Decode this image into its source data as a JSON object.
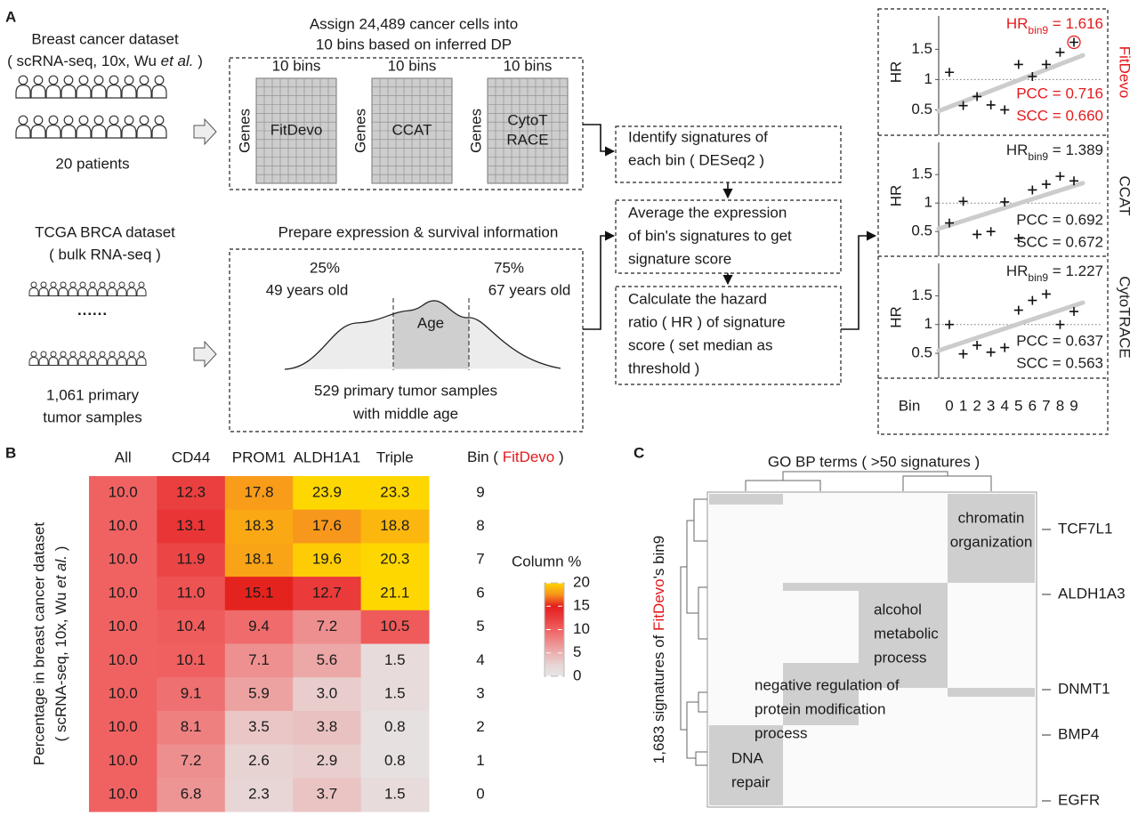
{
  "panel_a": {
    "label": "A",
    "sc": {
      "title": "Breast cancer dataset",
      "subtitle": [
        {
          "text": "( scRNA-seq, 10x, Wu "
        },
        {
          "text": "et al.",
          "style": "italic"
        },
        {
          "text": " )"
        }
      ],
      "patients": "20 patients"
    },
    "assign_title": [
      "Assign 24,489 cancer cells into",
      "10 bins based on inferred DP"
    ],
    "matrices": [
      {
        "top": "10 bins",
        "side": "Genes",
        "name": [
          "FitDevo"
        ]
      },
      {
        "top": "10 bins",
        "side": "Genes",
        "name": [
          "CCAT"
        ]
      },
      {
        "top": "10 bins",
        "side": "Genes",
        "name": [
          "CytoT",
          "RACE"
        ]
      }
    ],
    "tcga": {
      "title": "TCGA BRCA dataset",
      "subtitle": "( bulk RNA-seq )",
      "ellipsis": "······",
      "samples": [
        "1,061 primary",
        "tumor samples"
      ]
    },
    "prepare_title": "Prepare expression & survival information",
    "age": {
      "q25": "25%",
      "q25_age": "49 years old",
      "q75": "75%",
      "q75_age": "67 years old",
      "label": "Age",
      "caption": [
        "529 primary tumor samples",
        "with middle age"
      ]
    },
    "steps": [
      [
        "Identify signatures of",
        "each bin ( DESeq2 )"
      ],
      [
        "Average the expression",
        "of bin's signatures to get",
        "signature score"
      ],
      [
        "Calculate the hazard",
        "ratio ( HR ) of signature",
        "score ( set median as",
        "threshold )"
      ]
    ],
    "hr_axis": {
      "label": "HR",
      "ylim": [
        0.3,
        1.8
      ],
      "yticks": [
        0.5,
        1,
        1.5
      ],
      "reference": 1
    },
    "bin_axis": {
      "label": "Bin",
      "xlim": [
        0,
        9
      ],
      "ticks": [
        0,
        1,
        2,
        3,
        4,
        5,
        6,
        7,
        8,
        9
      ]
    },
    "hr_plots": [
      {
        "method": "FitDevo",
        "color": "#e41a1c",
        "hr_label": [
          {
            "text": "HR"
          },
          {
            "text": "bin9",
            "sub": true
          },
          {
            "text": " = 1.616"
          }
        ],
        "pcc": "PCC = 0.716",
        "scc": "SCC = 0.660",
        "hr": [
          1.12,
          0.57,
          0.72,
          0.58,
          0.5,
          1.25,
          1.05,
          1.25,
          1.45,
          1.616
        ],
        "trend": [
          0.48,
          1.4
        ],
        "highlight_bin": 9
      },
      {
        "method": "CCAT",
        "color": "#222222",
        "hr_label": [
          {
            "text": "HR"
          },
          {
            "text": "bin9",
            "sub": true
          },
          {
            "text": " = 1.389"
          }
        ],
        "pcc": "PCC = 0.692",
        "scc": "SCC = 0.672",
        "hr": [
          0.65,
          1.03,
          0.45,
          0.5,
          1.02,
          0.38,
          1.23,
          1.33,
          1.47,
          1.389
        ],
        "trend": [
          0.55,
          1.35
        ]
      },
      {
        "method": "CytoTRACE",
        "color": "#222222",
        "hr_label": [
          {
            "text": "HR"
          },
          {
            "text": "bin9",
            "sub": true
          },
          {
            "text": " = 1.227"
          }
        ],
        "pcc": "PCC = 0.637",
        "scc": "SCC = 0.563",
        "hr": [
          1.0,
          0.49,
          0.64,
          0.52,
          0.6,
          1.25,
          1.42,
          1.53,
          1.0,
          1.227
        ],
        "trend": [
          0.55,
          1.38
        ]
      }
    ]
  },
  "panel_b": {
    "label": "B",
    "columns": [
      "All",
      "CD44",
      "PROM1",
      "ALDH1A1",
      "Triple"
    ],
    "bin_header": [
      {
        "text": "Bin ( "
      },
      {
        "text": "FitDevo",
        "color": "#e41a1c"
      },
      {
        "text": " )"
      }
    ],
    "bins": [
      "9",
      "8",
      "7",
      "6",
      "5",
      "4",
      "3",
      "2",
      "1",
      "0"
    ],
    "ylabel": {
      "line1": "Percentage in breast cancer dataset",
      "line2": [
        {
          "text": "( scRNA-seq, 10x, Wu "
        },
        {
          "text": "et al.",
          "style": "italic"
        },
        {
          "text": " )"
        }
      ]
    },
    "values": [
      [
        10.0,
        12.3,
        17.8,
        23.9,
        23.3
      ],
      [
        10.0,
        13.1,
        18.3,
        17.6,
        18.8
      ],
      [
        10.0,
        11.9,
        18.1,
        19.6,
        20.3
      ],
      [
        10.0,
        11.0,
        15.1,
        12.7,
        21.1
      ],
      [
        10.0,
        10.4,
        9.4,
        7.2,
        10.5
      ],
      [
        10.0,
        10.1,
        7.1,
        5.6,
        1.5
      ],
      [
        10.0,
        9.1,
        5.9,
        3.0,
        1.5
      ],
      [
        10.0,
        8.1,
        3.5,
        3.8,
        0.8
      ],
      [
        10.0,
        7.2,
        2.6,
        2.9,
        0.8
      ],
      [
        10.0,
        6.8,
        2.3,
        3.7,
        1.5
      ]
    ],
    "value_labels": [
      [
        "10.0",
        "12.3",
        "17.8",
        "23.9",
        "23.3"
      ],
      [
        "10.0",
        "13.1",
        "18.3",
        "17.6",
        "18.8"
      ],
      [
        "10.0",
        "11.9",
        "18.1",
        "19.6",
        "20.3"
      ],
      [
        "10.0",
        "11.0",
        "15.1",
        "12.7",
        "21.1"
      ],
      [
        "10.0",
        "10.4",
        "9.4",
        "7.2",
        "10.5"
      ],
      [
        "10.0",
        "10.1",
        "7.1",
        "5.6",
        "1.5"
      ],
      [
        "10.0",
        "9.1",
        "5.9",
        "3.0",
        "1.5"
      ],
      [
        "10.0",
        "8.1",
        "3.5",
        "3.8",
        "0.8"
      ],
      [
        "10.0",
        "7.2",
        "2.6",
        "2.9",
        "0.8"
      ],
      [
        "10.0",
        "6.8",
        "2.3",
        "3.7",
        "1.5"
      ]
    ],
    "colorbar": {
      "title": "Column %",
      "clim": [
        0,
        20
      ],
      "ticks": [
        0,
        5,
        10,
        15,
        20
      ],
      "colors": [
        "#e6e6e6",
        "#e8d4d4",
        "#ecb0b0",
        "#ee8a8a",
        "#f06262",
        "#ea3c3c",
        "#e41e1e",
        "#f7941d",
        "#ffd700"
      ]
    }
  },
  "panel_c": {
    "label": "C",
    "title": "GO BP terms ( >50 signatures )",
    "ylabel": [
      {
        "text": "1,683 signatures of "
      },
      {
        "text": "FitDevo",
        "color": "#e41a1c"
      },
      {
        "text": "'s bin9"
      }
    ],
    "blocks": [
      [
        "chromatin",
        "organization"
      ],
      [
        "alcohol",
        "metabolic",
        "process"
      ],
      [
        "negative regulation of",
        "protein modification",
        "process"
      ],
      [
        "DNA",
        "repair"
      ]
    ],
    "genes": [
      "TCF7L1",
      "ALDH1A3",
      "DNMT1",
      "BMP4",
      "EGFR"
    ]
  }
}
